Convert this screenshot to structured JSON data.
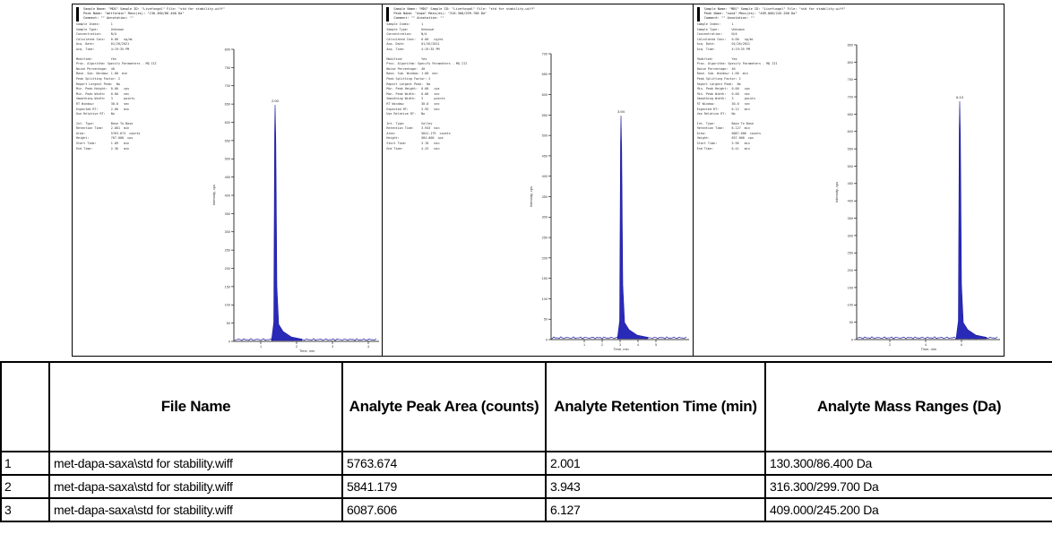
{
  "chromatograms": [
    {
      "header_lines": [
        "Sample Name: \"MDS\"   Sample ID: \"Livefungal\"   File: \"std for stability.wiff\"",
        "Peak Name: \"metformin\"  Mass(es): \"130.300/86.400 Da\"",
        "Comment: \"\"   Annotation: \"\""
      ],
      "info_lines": [
        "Sample Index:      1",
        "Sample Type:       Unknown",
        "Concentration:     N/A",
        "Calculated Conc:   0.00   ng/mL",
        "Acq. Date:         01/26/2021",
        "Acq. Time:         4:19:35 PM",
        "",
        "Modified:          Yes",
        "Proc. Algorithm: Specify Parameters - MQ III",
        "Noise Percentage:  40",
        "Base. Sub. Window: 1.00  min",
        "Peak Splitting Factor: 2",
        "Report Largest Peak:  No",
        "Min. Peak Height:  0.00   cps",
        "Min. Peak Width:   0.00   sec",
        "Smoothing Width:   3      points",
        "RT Window:         30.0   sec",
        "Expected RT:       2.00   min",
        "Use Relative RT:   No",
        "",
        "Int. Type:         Base To Base",
        "Retention Time:    2.001  min",
        "Area:              5763.674  counts",
        "Height:            767.000  cps",
        "Start Time:        1.89   min",
        "End Time:          2.36   min"
      ],
      "peak_label": "2.00",
      "ylabel": "Intensity, cps",
      "xlabel": "Time, min",
      "y_ticks": [
        "800",
        "750",
        "700",
        "650",
        "600",
        "550",
        "500",
        "450",
        "400",
        "350",
        "300",
        "250",
        "200",
        "150",
        "100",
        "50",
        "0"
      ],
      "x_ticks": [
        "1",
        "2",
        "3",
        "4"
      ]
    },
    {
      "header_lines": [
        "Sample Name: \"MDS\"   Sample ID: \"Livefungal\"   File: \"std for stability.wiff\"",
        "Peak Name: \"dapa\"  Mass(es): \"316.300/299.700 Da\"",
        "Comment: \"\"   Annotation: \"\""
      ],
      "info_lines": [
        "Sample Index:      1",
        "Sample Type:       Unknown",
        "Concentration:     N/A",
        "Calculated Conc:   0.00   ng/mL",
        "Acq. Date:         01/26/2021",
        "Acq. Time:         4:19:35 PM",
        "",
        "Modified:          Yes",
        "Proc. Algorithm: Specify Parameters - MQ III",
        "Noise Percentage:  40",
        "Base. Sub. Window: 1.00  min",
        "Peak Splitting Factor: 2",
        "Report Largest Peak:  No",
        "Min. Peak Height:  0.00   cps",
        "Min. Peak Width:   0.00   sec",
        "Smoothing Width:   3      points",
        "RT Window:         30.0   sec",
        "Expected RT:       3.95   min",
        "Use Relative RT:   No",
        "",
        "Int. Type:         Valley",
        "Retention Time:    3.943  min",
        "Area:              5841.179  counts",
        "Height:            584.000  cps",
        "Start Time:        3.78   min",
        "End Time:          4.25   min"
      ],
      "peak_label": "3.94",
      "ylabel": "Intensity, cps",
      "xlabel": "Time, min",
      "y_ticks": [
        "700",
        "650",
        "600",
        "550",
        "500",
        "450",
        "400",
        "350",
        "300",
        "250",
        "200",
        "150",
        "100",
        "50",
        "0"
      ],
      "x_ticks": [
        "1",
        "2",
        "3",
        "4",
        "5"
      ]
    },
    {
      "header_lines": [
        "Sample Name: \"MDS\"   Sample ID: \"Livefungal\"   File: \"std for stability.wiff\"",
        "Peak Name: \"saxa\"  Mass(es): \"409.000/245.200 Da\"",
        "Comment: \"\"   Annotation: \"\""
      ],
      "info_lines": [
        "Sample Index:      1",
        "Sample Type:       Unknown",
        "Concentration:     N/A",
        "Calculated Conc:   0.00   ng/mL",
        "Acq. Date:         01/26/2021",
        "Acq. Time:         4:19:35 PM",
        "",
        "Modified:          Yes",
        "Proc. Algorithm: Specify Parameters - MQ III",
        "Noise Percentage:  40",
        "Base. Sub. Window: 1.00  min",
        "Peak Splitting Factor: 2",
        "Report Largest Peak:  No",
        "Min. Peak Height:  0.00   cps",
        "Min. Peak Width:   0.00   sec",
        "Smoothing Width:   3      points",
        "RT Window:         30.0   sec",
        "Expected RT:       6.12   min",
        "Use Relative RT:   No",
        "",
        "Int. Type:         Base To Base",
        "Retention Time:    6.127  min",
        "Area:              6087.606  counts",
        "Height:            657.000  cps",
        "Start Time:        5.96   min",
        "End Time:          6.41   min"
      ],
      "peak_label": "6.13",
      "ylabel": "Intensity, cps",
      "xlabel": "Time, min",
      "y_ticks": [
        "850",
        "800",
        "750",
        "700",
        "650",
        "600",
        "550",
        "500",
        "450",
        "400",
        "350",
        "300",
        "250",
        "200",
        "150",
        "100",
        "50",
        "0"
      ],
      "x_ticks": [
        "2",
        "4",
        "6"
      ]
    }
  ],
  "table": {
    "headers": {
      "index": "",
      "file_name": "File Name",
      "peak_area": "Analyte Peak Area (counts)",
      "retention_time": "Analyte Retention Time (min)",
      "mass_ranges": "Analyte Mass Ranges (Da)"
    },
    "rows": [
      {
        "index": "1",
        "file_name": "met-dapa-saxa\\std for stability.wiff",
        "peak_area": "5763.674",
        "retention_time": "2.001",
        "mass_ranges": "130.300/86.400 Da"
      },
      {
        "index": "2",
        "file_name": "met-dapa-saxa\\std for stability.wiff",
        "peak_area": "5841.179",
        "retention_time": "3.943",
        "mass_ranges": "316.300/299.700 Da"
      },
      {
        "index": "3",
        "file_name": "met-dapa-saxa\\std for stability.wiff",
        "peak_area": "6087.606",
        "retention_time": "6.127",
        "mass_ranges": "409.000/245.200 Da"
      }
    ]
  },
  "colors": {
    "trace": "#1a1aa0",
    "trace_fill": "#2a2ab8",
    "grid_border": "#000000"
  }
}
